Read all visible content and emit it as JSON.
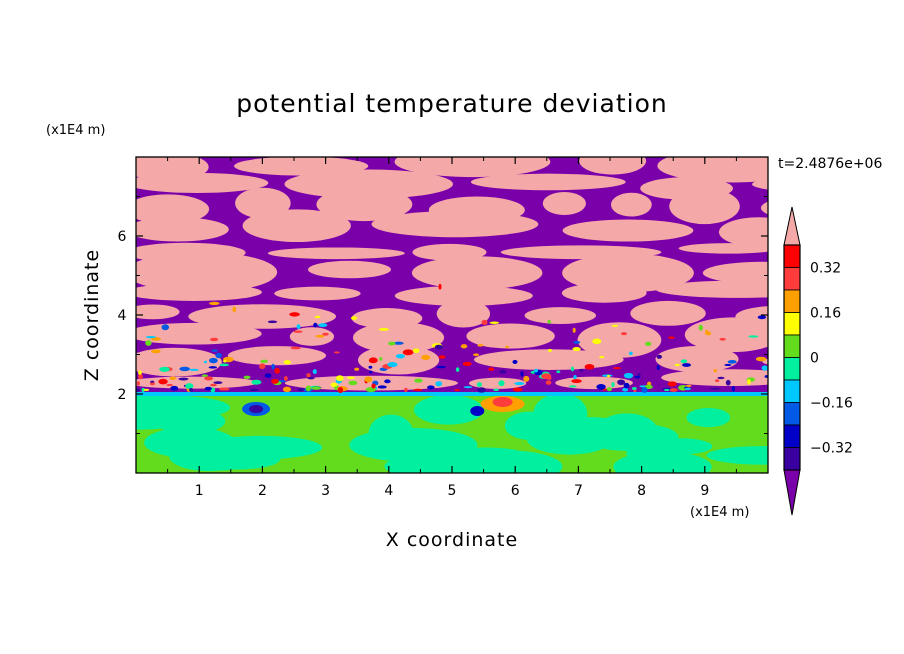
{
  "chart_data": {
    "type": "heatmap",
    "title": "potential temperature deviation",
    "xlabel": "X coordinate",
    "ylabel": "Z coordinate",
    "x_unit": "(x1E4 m)",
    "y_unit": "(x1E4 m)",
    "time_label": "t=2.4876e+06",
    "xlim": [
      0,
      10
    ],
    "ylim": [
      0,
      8
    ],
    "x_ticks": [
      "1",
      "2",
      "3",
      "4",
      "5",
      "6",
      "7",
      "8",
      "9"
    ],
    "y_ticks": [
      "2",
      "4",
      "6"
    ],
    "colorbar": {
      "levels": [
        -0.4,
        -0.32,
        -0.24,
        -0.16,
        -0.08,
        0,
        0.08,
        0.16,
        0.24,
        0.32,
        0.4
      ],
      "tick_labels": [
        "0.32",
        "0.16",
        "0",
        "−0.16",
        "−0.32"
      ],
      "colors": [
        "#7a00aa",
        "#3a00a0",
        "#0000c8",
        "#005ae6",
        "#00c8ff",
        "#00f0a0",
        "#64dc1e",
        "#ffff00",
        "#ffa000",
        "#ff3c3c",
        "#ff0000",
        "#f4a8a8"
      ],
      "extend": "both"
    },
    "fields": {
      "lower_layer": {
        "z_range": [
          0,
          2
        ],
        "dominant_values": [
          0.0,
          0.05
        ],
        "dominant_colors": [
          "#00f0a0",
          "#64dc1e"
        ]
      },
      "upper_layer": {
        "z_range": [
          2,
          8
        ],
        "dominant_values": [
          -0.45,
          0.45
        ],
        "dominant_colors": [
          "#7a00aa",
          "#f4a8a8"
        ]
      }
    }
  }
}
